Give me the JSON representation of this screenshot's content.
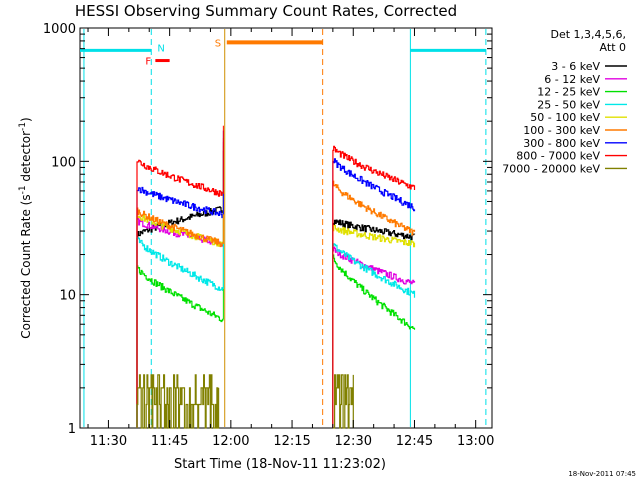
{
  "chart_data": {
    "type": "line",
    "title": "HESSI Observing Summary Count Rates, Corrected",
    "xlabel": "Start Time (18-Nov-11 11:23:02)",
    "ylabel": "Corrected Count Rate (s⁻¹ detector⁻¹)",
    "ylabel_main": "Corrected Count Rate (s",
    "ylabel_sup1": "-1",
    "ylabel_mid": " detector",
    "ylabel_sup2": "-1",
    "ylabel_end": ")",
    "yscale": "log",
    "ylim": [
      1,
      1000
    ],
    "xlim": [
      "11:23:02",
      "13:04:00"
    ],
    "x_ticks": [
      "11:30",
      "11:45",
      "12:00",
      "12:15",
      "12:30",
      "12:45",
      "13:00"
    ],
    "y_ticks": [
      "1",
      "10",
      "100",
      "1000"
    ],
    "legend_header": [
      "Det 1,3,4,5,6,",
      "Att 0"
    ],
    "legend_position": "outside-right",
    "timestamp": "18-Nov-2011 07:45",
    "flag_labels": {
      "F": "F",
      "N": "N",
      "S": "S"
    },
    "colors": {
      "saa": "#00e0e8",
      "night": "#00e0e8",
      "flare": "#ff0000",
      "sunlight": "#ff7a00",
      "s_label": "#ff7a00",
      "f_label": "#ff0000",
      "n_label": "#00e0e8"
    },
    "flag_bars": {
      "saa_1": {
        "start": "11:23:02",
        "end": "11:40:30",
        "level": 680
      },
      "saa_2": {
        "start": "12:44:00",
        "end": "13:02:30",
        "level": 680
      },
      "flare": {
        "start": "11:41:30",
        "end": "11:45:00",
        "level": 570
      },
      "sunlight": {
        "start": "11:59:00",
        "end": "12:22:30",
        "level": 780
      }
    },
    "vlines": [
      {
        "t": "11:24:00",
        "style": "solid",
        "color": "#00e0e8"
      },
      {
        "t": "11:40:30",
        "style": "dashed",
        "color": "#00e0e8"
      },
      {
        "t": "11:58:30",
        "style": "solid",
        "color": "#d09000"
      },
      {
        "t": "12:22:30",
        "style": "dashed",
        "color": "#ff7a00"
      },
      {
        "t": "12:44:00",
        "style": "solid",
        "color": "#00e0e8"
      },
      {
        "t": "13:02:30",
        "style": "dashed",
        "color": "#00e0e8"
      }
    ],
    "series": [
      {
        "name": "3 - 6 keV",
        "color": "#000000",
        "seg1": {
          "t0": "11:37:00",
          "t1": "11:58:00",
          "v0": 28,
          "v1": 44,
          "kind": "decay"
        },
        "seg2": {
          "t0": "12:25:00",
          "t1": "12:45:00",
          "v0": 36,
          "v1": 27,
          "kind": "decay"
        }
      },
      {
        "name": "6 - 12 keV",
        "color": "#e000e0",
        "seg1": {
          "t0": "11:37:00",
          "t1": "11:58:00",
          "v0": 36,
          "v1": 24,
          "kind": "decay"
        },
        "seg2": {
          "t0": "12:25:00",
          "t1": "12:45:00",
          "v0": 22,
          "v1": 12,
          "kind": "decay"
        }
      },
      {
        "name": "12 - 25 keV",
        "color": "#00e000",
        "seg1": {
          "t0": "11:37:00",
          "t1": "11:58:00",
          "v0": 16,
          "v1": 6.5,
          "kind": "decay"
        },
        "seg2": {
          "t0": "12:25:00",
          "t1": "12:45:00",
          "v0": 19,
          "v1": 5.5,
          "kind": "decay"
        }
      },
      {
        "name": "25 - 50 keV",
        "color": "#00e8e8",
        "seg1": {
          "t0": "11:37:00",
          "t1": "11:58:00",
          "v0": 26,
          "v1": 11,
          "kind": "decay"
        },
        "seg2": {
          "t0": "12:25:00",
          "t1": "12:45:00",
          "v0": 24,
          "v1": 10,
          "kind": "decay"
        }
      },
      {
        "name": "50 - 100 keV",
        "color": "#e0e000",
        "seg1": {
          "t0": "11:37:00",
          "t1": "11:58:00",
          "v0": 40,
          "v1": 24,
          "kind": "decay"
        },
        "seg2": {
          "t0": "12:25:00",
          "t1": "12:45:00",
          "v0": 32,
          "v1": 24,
          "kind": "decay"
        }
      },
      {
        "name": "100 - 300 keV",
        "color": "#ff7a00",
        "seg1": {
          "t0": "11:37:00",
          "t1": "11:58:00",
          "v0": 43,
          "v1": 24,
          "kind": "decay"
        },
        "seg2": {
          "t0": "12:25:00",
          "t1": "12:45:00",
          "v0": 68,
          "v1": 29,
          "kind": "decay"
        }
      },
      {
        "name": "300 - 800 keV",
        "color": "#0000ff",
        "seg1": {
          "t0": "11:37:00",
          "t1": "11:58:00",
          "v0": 64,
          "v1": 40,
          "kind": "decay"
        },
        "seg2": {
          "t0": "12:25:00",
          "t1": "12:45:00",
          "v0": 103,
          "v1": 45,
          "kind": "decay"
        }
      },
      {
        "name": "800 - 7000 keV",
        "color": "#ff0000",
        "seg1": {
          "t0": "11:37:00",
          "t1": "11:58:00",
          "v0": 102,
          "v1": 57,
          "kind": "decay"
        },
        "seg2": {
          "t0": "12:25:00",
          "t1": "12:45:00",
          "v0": 126,
          "v1": 63,
          "kind": "decay"
        }
      },
      {
        "name": "7000 - 20000 keV",
        "color": "#808000",
        "seg1": {
          "t0": "11:37:00",
          "t1": "11:57:00",
          "v0": 2,
          "v1": 1.5,
          "kind": "noise"
        },
        "seg2": {
          "t0": "12:25:00",
          "t1": "12:30:00",
          "v0": 2.5,
          "v1": 1.5,
          "kind": "noise"
        }
      }
    ]
  }
}
